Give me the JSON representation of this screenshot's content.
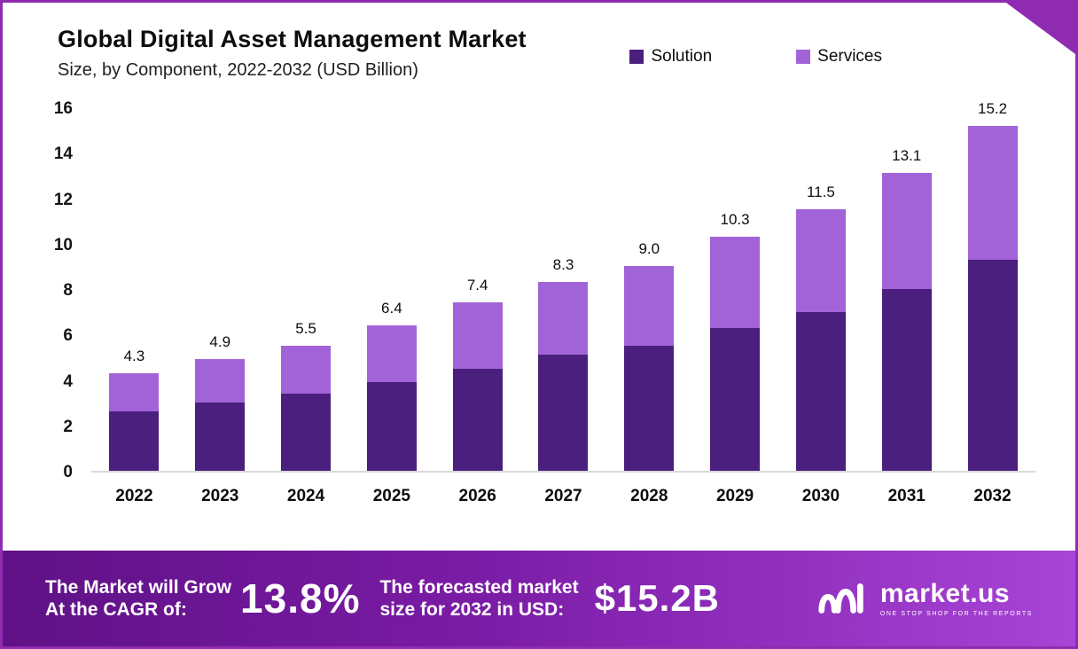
{
  "page": {
    "border_color": "#8F2BB0"
  },
  "header": {
    "title": "Global Digital Asset Management Market",
    "subtitle": "Size, by Component, 2022-2032 (USD Billion)"
  },
  "legend": [
    {
      "label": "Solution",
      "color": "#4A1F7E"
    },
    {
      "label": "Services",
      "color": "#A263D8"
    }
  ],
  "chart_data": {
    "type": "bar",
    "stacked": true,
    "title": "Global Digital Asset Management Market Size, by Component, 2022-2032 (USD Billion)",
    "categories": [
      "2022",
      "2023",
      "2024",
      "2025",
      "2026",
      "2027",
      "2028",
      "2029",
      "2030",
      "2031",
      "2032"
    ],
    "series": [
      {
        "name": "Solution",
        "color": "#4A1F7E",
        "values": [
          2.6,
          3.0,
          3.4,
          3.9,
          4.5,
          5.1,
          5.5,
          6.3,
          7.0,
          8.0,
          9.3
        ]
      },
      {
        "name": "Services",
        "color": "#A263D8",
        "values": [
          1.7,
          1.9,
          2.1,
          2.5,
          2.9,
          3.2,
          3.5,
          4.0,
          4.5,
          5.1,
          5.9
        ]
      }
    ],
    "totals": [
      4.3,
      4.9,
      5.5,
      6.4,
      7.4,
      8.3,
      9.0,
      10.3,
      11.5,
      13.1,
      15.2
    ],
    "ylim": [
      0,
      16
    ],
    "yticks": [
      0,
      2,
      4,
      6,
      8,
      10,
      12,
      14,
      16
    ],
    "grid": false,
    "legend_position": "top-right"
  },
  "banner": {
    "cagr_label_line1": "The Market will Grow",
    "cagr_label_line2": "At the CAGR of:",
    "cagr_value": "13.8%",
    "forecast_label_line1": "The forecasted market",
    "forecast_label_line2": "size for 2032 in USD:",
    "forecast_value": "$15.2B",
    "logo_text": "market.us",
    "logo_tagline": "ONE STOP SHOP FOR THE REPORTS"
  }
}
